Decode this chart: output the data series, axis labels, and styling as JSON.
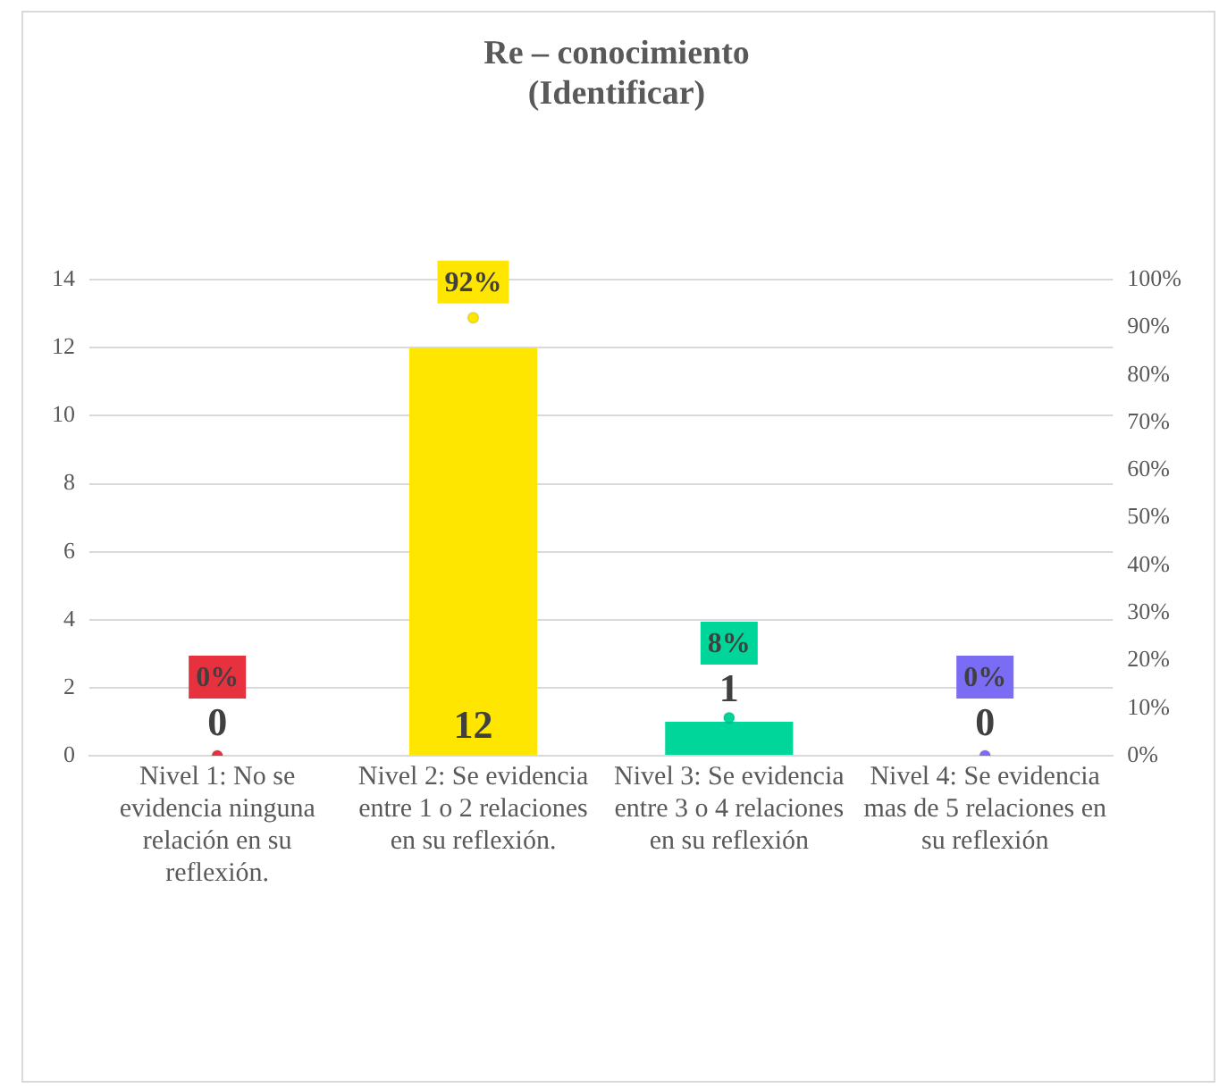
{
  "chart_data": {
    "type": "bar",
    "title": "Re – conocimiento\n(Identificar)",
    "categories": [
      "Nivel 1: No se evidencia ninguna relación en su reflexión.",
      "Nivel 2: Se evidencia entre 1 o 2 relaciones en su reflexión.",
      "Nivel 3: Se evidencia entre 3 o 4 relaciones en su reflexión",
      "Nivel 4: Se evidencia mas de 5 relaciones en su reflexión"
    ],
    "series": [
      {
        "colors": [
          "#e8313f",
          "#ffe600",
          "#00d59a",
          "#7b6cf6"
        ],
        "values": [
          0,
          12,
          1,
          0
        ]
      },
      {
        "type": "scatter",
        "axis": "y2",
        "colors": [
          "#e8313f",
          "#ffe600",
          "#00d59a",
          "#7b6cf6"
        ],
        "values": [
          0,
          92,
          8,
          0
        ],
        "value_labels": [
          "0%",
          "92%",
          "8%",
          "0%"
        ]
      }
    ],
    "ylim": [
      0,
      14
    ],
    "yticks": [
      0,
      2,
      4,
      6,
      8,
      10,
      12,
      14
    ],
    "y2lim": [
      0,
      100
    ],
    "y2ticks": [
      {
        "value": 0,
        "label": "0%"
      },
      {
        "value": 10,
        "label": "10%"
      },
      {
        "value": 20,
        "label": "20%"
      },
      {
        "value": 30,
        "label": "30%"
      },
      {
        "value": 40,
        "label": "40%"
      },
      {
        "value": 50,
        "label": "50%"
      },
      {
        "value": 60,
        "label": "60%"
      },
      {
        "value": 70,
        "label": "70%"
      },
      {
        "value": 80,
        "label": "80%"
      },
      {
        "value": 90,
        "label": "90%"
      },
      {
        "value": 100,
        "label": "100%"
      }
    ],
    "grid": "y",
    "legend": false,
    "marker": "circle",
    "data_labels": true
  }
}
